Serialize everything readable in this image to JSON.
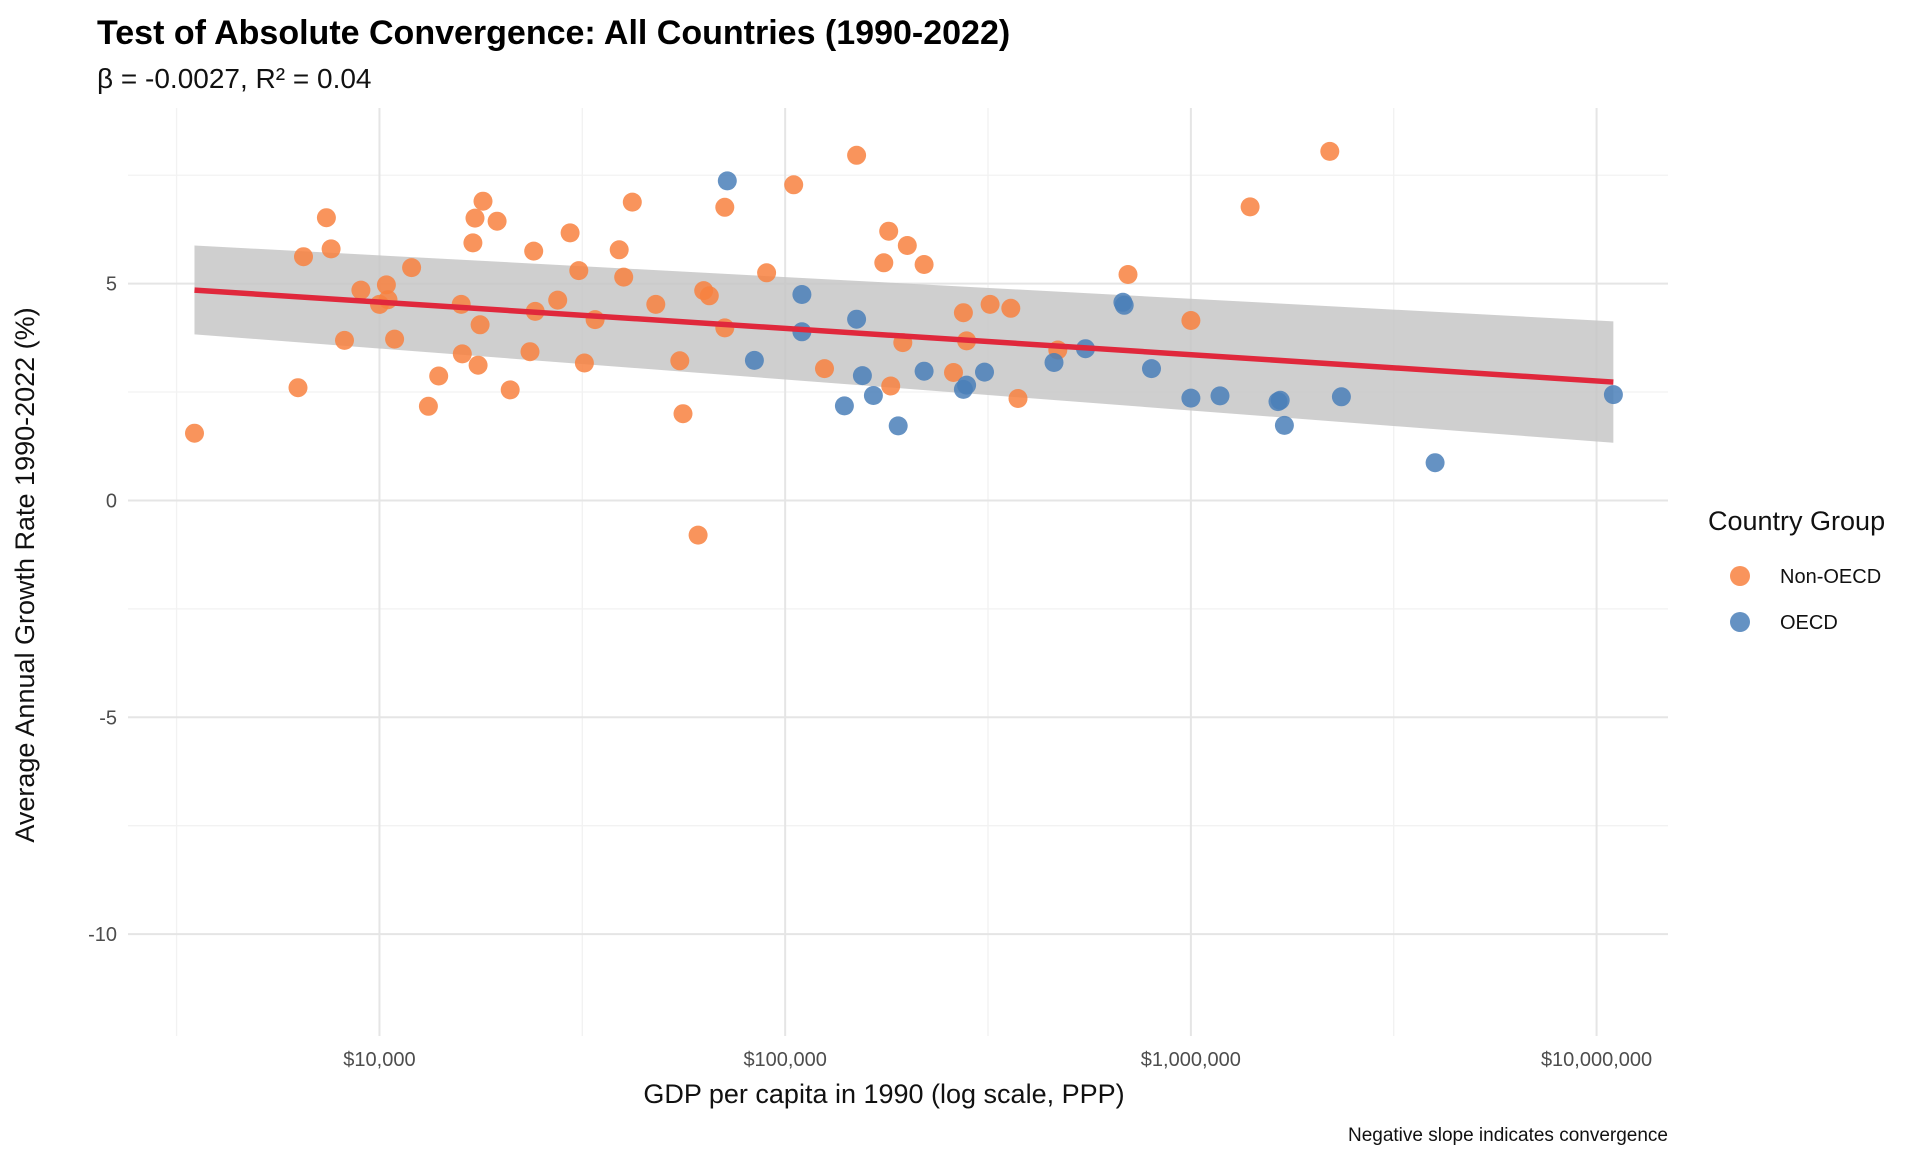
{
  "chart_data": {
    "type": "scatter",
    "title": "Test of Absolute Convergence: All Countries (1990-2022)",
    "subtitle": "β = -0.0027, R² = 0.04",
    "xlabel": "GDP per capita in 1990 (log scale, PPP)",
    "ylabel": "Average Annual Growth Rate 1990-2022 (%)",
    "caption": "Negative slope indicates convergence",
    "x_scale": "log10",
    "xlim": [
      2400,
      15000000
    ],
    "ylim": [
      -12.35,
      9.05
    ],
    "x_ticks": [
      10000,
      100000,
      1000000,
      10000000
    ],
    "x_tick_labels": [
      "$10,000",
      "$100,000",
      "$1,000,000",
      "$10,000,000"
    ],
    "y_ticks": [
      -10,
      -5,
      0,
      5
    ],
    "y_tick_labels": [
      "-10",
      "-5",
      "0",
      "5"
    ],
    "grid": true,
    "legend": {
      "title": "Country Group",
      "position": "right",
      "entries": [
        {
          "name": "Non-OECD",
          "color": "#F8813F"
        },
        {
          "name": "OECD",
          "color": "#4A7FB8"
        }
      ]
    },
    "trend_line": {
      "color": "#E0283C",
      "x": [
        3500,
        11000000
      ],
      "y": [
        4.85,
        2.73
      ],
      "ci_lower": [
        3.83,
        1.33
      ],
      "ci_upper": [
        5.88,
        4.13
      ],
      "ci_color": "#c4c4c4"
    },
    "series": [
      {
        "name": "Non-OECD",
        "color": "#F8813F",
        "x": [
          3500,
          6300,
          6500,
          7400,
          7600,
          8200,
          9000,
          10000,
          10400,
          10500,
          10900,
          12000,
          13200,
          14000,
          15900,
          16000,
          17000,
          17200,
          17500,
          17700,
          18000,
          19500,
          21000,
          23500,
          24000,
          24200,
          27500,
          29500,
          31000,
          32000,
          34000,
          39000,
          40000,
          42000,
          48000,
          55000,
          56000,
          61000,
          63000,
          65000,
          71000,
          71000,
          90000,
          105000,
          125000,
          150000,
          175000,
          180000,
          182000,
          195000,
          200000,
          220000,
          260000,
          275000,
          280000,
          320000,
          360000,
          375000,
          470000,
          700000,
          1000000,
          1400000,
          2200000
        ],
        "y": [
          1.55,
          2.6,
          5.62,
          6.52,
          5.8,
          3.69,
          4.85,
          4.52,
          4.97,
          4.63,
          3.72,
          5.37,
          2.17,
          2.87,
          4.52,
          3.38,
          5.94,
          6.51,
          3.12,
          4.05,
          6.9,
          6.44,
          2.55,
          3.43,
          5.75,
          4.36,
          4.62,
          6.17,
          5.3,
          3.17,
          4.17,
          5.78,
          5.15,
          6.88,
          4.52,
          3.22,
          2.0,
          -0.8,
          4.84,
          4.72,
          6.76,
          3.98,
          5.25,
          7.28,
          3.04,
          7.96,
          5.48,
          6.21,
          2.64,
          3.64,
          5.88,
          5.44,
          2.95,
          4.33,
          3.68,
          4.52,
          4.43,
          2.35,
          3.47,
          5.21,
          4.15,
          6.77,
          8.05
        ]
      },
      {
        "name": "OECD",
        "color": "#4A7FB8",
        "x": [
          72000,
          84000,
          110000,
          110000,
          140000,
          150000,
          155000,
          165000,
          190000,
          220000,
          275000,
          280000,
          310000,
          460000,
          550000,
          680000,
          685000,
          800000,
          1000000,
          1180000,
          1640000,
          1660000,
          1700000,
          2350000,
          4000000,
          11000000
        ],
        "y": [
          7.37,
          3.23,
          4.75,
          3.89,
          2.18,
          4.18,
          2.88,
          2.42,
          1.72,
          2.98,
          2.56,
          2.66,
          2.96,
          3.18,
          3.5,
          4.57,
          4.5,
          3.04,
          2.36,
          2.41,
          2.28,
          2.31,
          1.73,
          2.39,
          0.87,
          2.44
        ]
      }
    ]
  }
}
